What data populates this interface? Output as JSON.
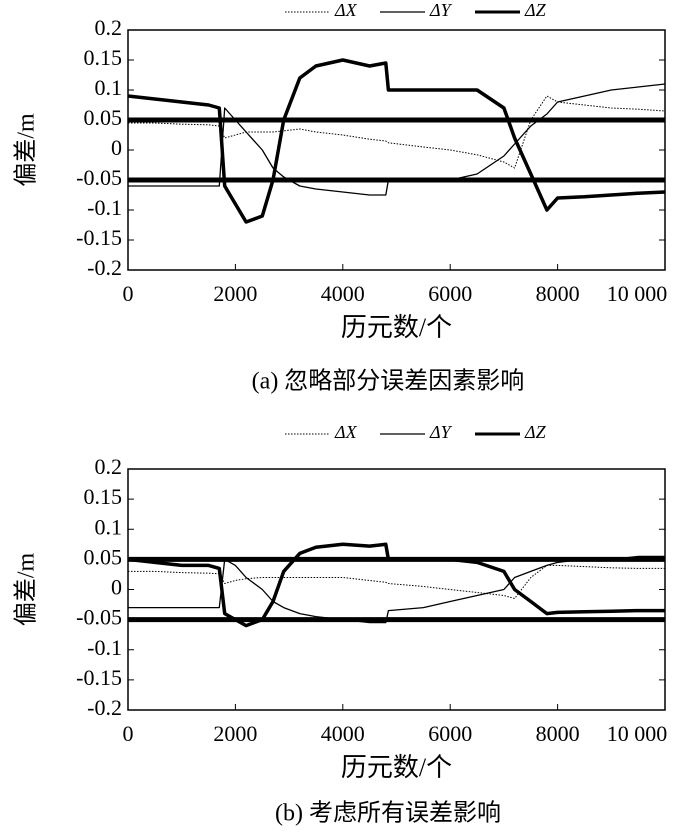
{
  "chart_data": [
    {
      "type": "line",
      "xlabel": "历元数/个",
      "ylabel": "偏差/m",
      "caption": "(a) 忽略部分误差因素影响",
      "x": [
        0,
        500,
        1000,
        1500,
        1700,
        1800,
        2000,
        2200,
        2500,
        2700,
        2900,
        3200,
        3500,
        4000,
        4500,
        4800,
        4850,
        5500,
        6000,
        6500,
        7000,
        7200,
        7500,
        7800,
        8000,
        8500,
        9000,
        9500,
        10000
      ],
      "series": [
        {
          "name": "ΔX",
          "color": "#000000",
          "line_style": "dotted",
          "values": [
            0.045,
            0.045,
            0.043,
            0.042,
            0.04,
            0.02,
            0.025,
            0.03,
            0.03,
            0.03,
            0.032,
            0.035,
            0.03,
            0.025,
            0.018,
            0.015,
            0.012,
            0.005,
            0,
            -0.008,
            -0.02,
            -0.03,
            0.05,
            0.09,
            0.08,
            0.075,
            0.07,
            0.068,
            0.065
          ]
        },
        {
          "name": "ΔY",
          "color": "#000000",
          "line_style": "thin",
          "values": [
            -0.06,
            -0.06,
            -0.06,
            -0.06,
            -0.06,
            0.07,
            0.05,
            0.03,
            0,
            -0.03,
            -0.045,
            -0.06,
            -0.065,
            -0.07,
            -0.075,
            -0.075,
            -0.05,
            -0.05,
            -0.05,
            -0.04,
            -0.01,
            0.01,
            0.04,
            0.06,
            0.08,
            0.09,
            0.1,
            0.105,
            0.11
          ]
        },
        {
          "name": "ΔZ",
          "color": "#000000",
          "line_style": "thick",
          "values": [
            0.09,
            0.085,
            0.08,
            0.075,
            0.07,
            -0.06,
            -0.09,
            -0.12,
            -0.11,
            -0.05,
            0.05,
            0.12,
            0.14,
            0.15,
            0.14,
            0.145,
            0.1,
            0.1,
            0.1,
            0.1,
            0.07,
            0.02,
            -0.04,
            -0.1,
            -0.08,
            -0.078,
            -0.075,
            -0.072,
            -0.07
          ]
        }
      ],
      "hlines": [
        0.05,
        -0.05
      ],
      "xlim": [
        0,
        10000
      ],
      "xticks": [
        0,
        2000,
        4000,
        6000,
        8000,
        {
          "value": 10000,
          "label": "10 000"
        }
      ],
      "ylim": [
        -0.2,
        0.2
      ],
      "yticks": [
        0.2,
        0.15,
        0.1,
        0.05,
        0,
        -0.05,
        -0.1,
        -0.15,
        -0.2
      ],
      "legend": "top"
    },
    {
      "type": "line",
      "xlabel": "历元数/个",
      "ylabel": "偏差/m",
      "caption": "(b) 考虑所有误差影响",
      "x": [
        0,
        500,
        1000,
        1500,
        1700,
        1800,
        2000,
        2200,
        2500,
        2700,
        2900,
        3200,
        3500,
        4000,
        4500,
        4800,
        4850,
        5500,
        6000,
        6500,
        7000,
        7200,
        7500,
        7800,
        8000,
        8500,
        9000,
        9500,
        10000
      ],
      "series": [
        {
          "name": "ΔX",
          "color": "#000000",
          "line_style": "dotted",
          "values": [
            0.03,
            0.03,
            0.028,
            0.027,
            0.026,
            0.01,
            0.015,
            0.018,
            0.02,
            0.02,
            0.02,
            0.02,
            0.02,
            0.02,
            0.015,
            0.012,
            0.01,
            0.005,
            0,
            -0.005,
            -0.01,
            -0.015,
            0.02,
            0.04,
            0.04,
            0.038,
            0.036,
            0.035,
            0.035
          ]
        },
        {
          "name": "ΔY",
          "color": "#000000",
          "line_style": "thin",
          "values": [
            -0.03,
            -0.03,
            -0.03,
            -0.03,
            -0.03,
            0.05,
            0.04,
            0.02,
            0,
            -0.02,
            -0.03,
            -0.04,
            -0.045,
            -0.05,
            -0.055,
            -0.055,
            -0.035,
            -0.03,
            -0.02,
            -0.01,
            0,
            0.02,
            0.03,
            0.04,
            0.045,
            0.05,
            0.05,
            0.055,
            0.055
          ]
        },
        {
          "name": "ΔZ",
          "color": "#000000",
          "line_style": "thick",
          "values": [
            0.05,
            0.045,
            0.04,
            0.04,
            0.035,
            -0.04,
            -0.05,
            -0.06,
            -0.05,
            -0.02,
            0.03,
            0.06,
            0.07,
            0.075,
            0.072,
            0.075,
            0.05,
            0.05,
            0.05,
            0.045,
            0.03,
            0,
            -0.02,
            -0.04,
            -0.038,
            -0.037,
            -0.036,
            -0.035,
            -0.035
          ]
        }
      ],
      "hlines": [
        0.05,
        -0.05
      ],
      "xlim": [
        0,
        10000
      ],
      "xticks": [
        0,
        2000,
        4000,
        6000,
        8000,
        {
          "value": 10000,
          "label": "10 000"
        }
      ],
      "ylim": [
        -0.2,
        0.2
      ],
      "yticks": [
        0.2,
        0.15,
        0.1,
        0.05,
        0,
        -0.05,
        -0.1,
        -0.15,
        -0.2
      ],
      "legend": "top"
    }
  ]
}
